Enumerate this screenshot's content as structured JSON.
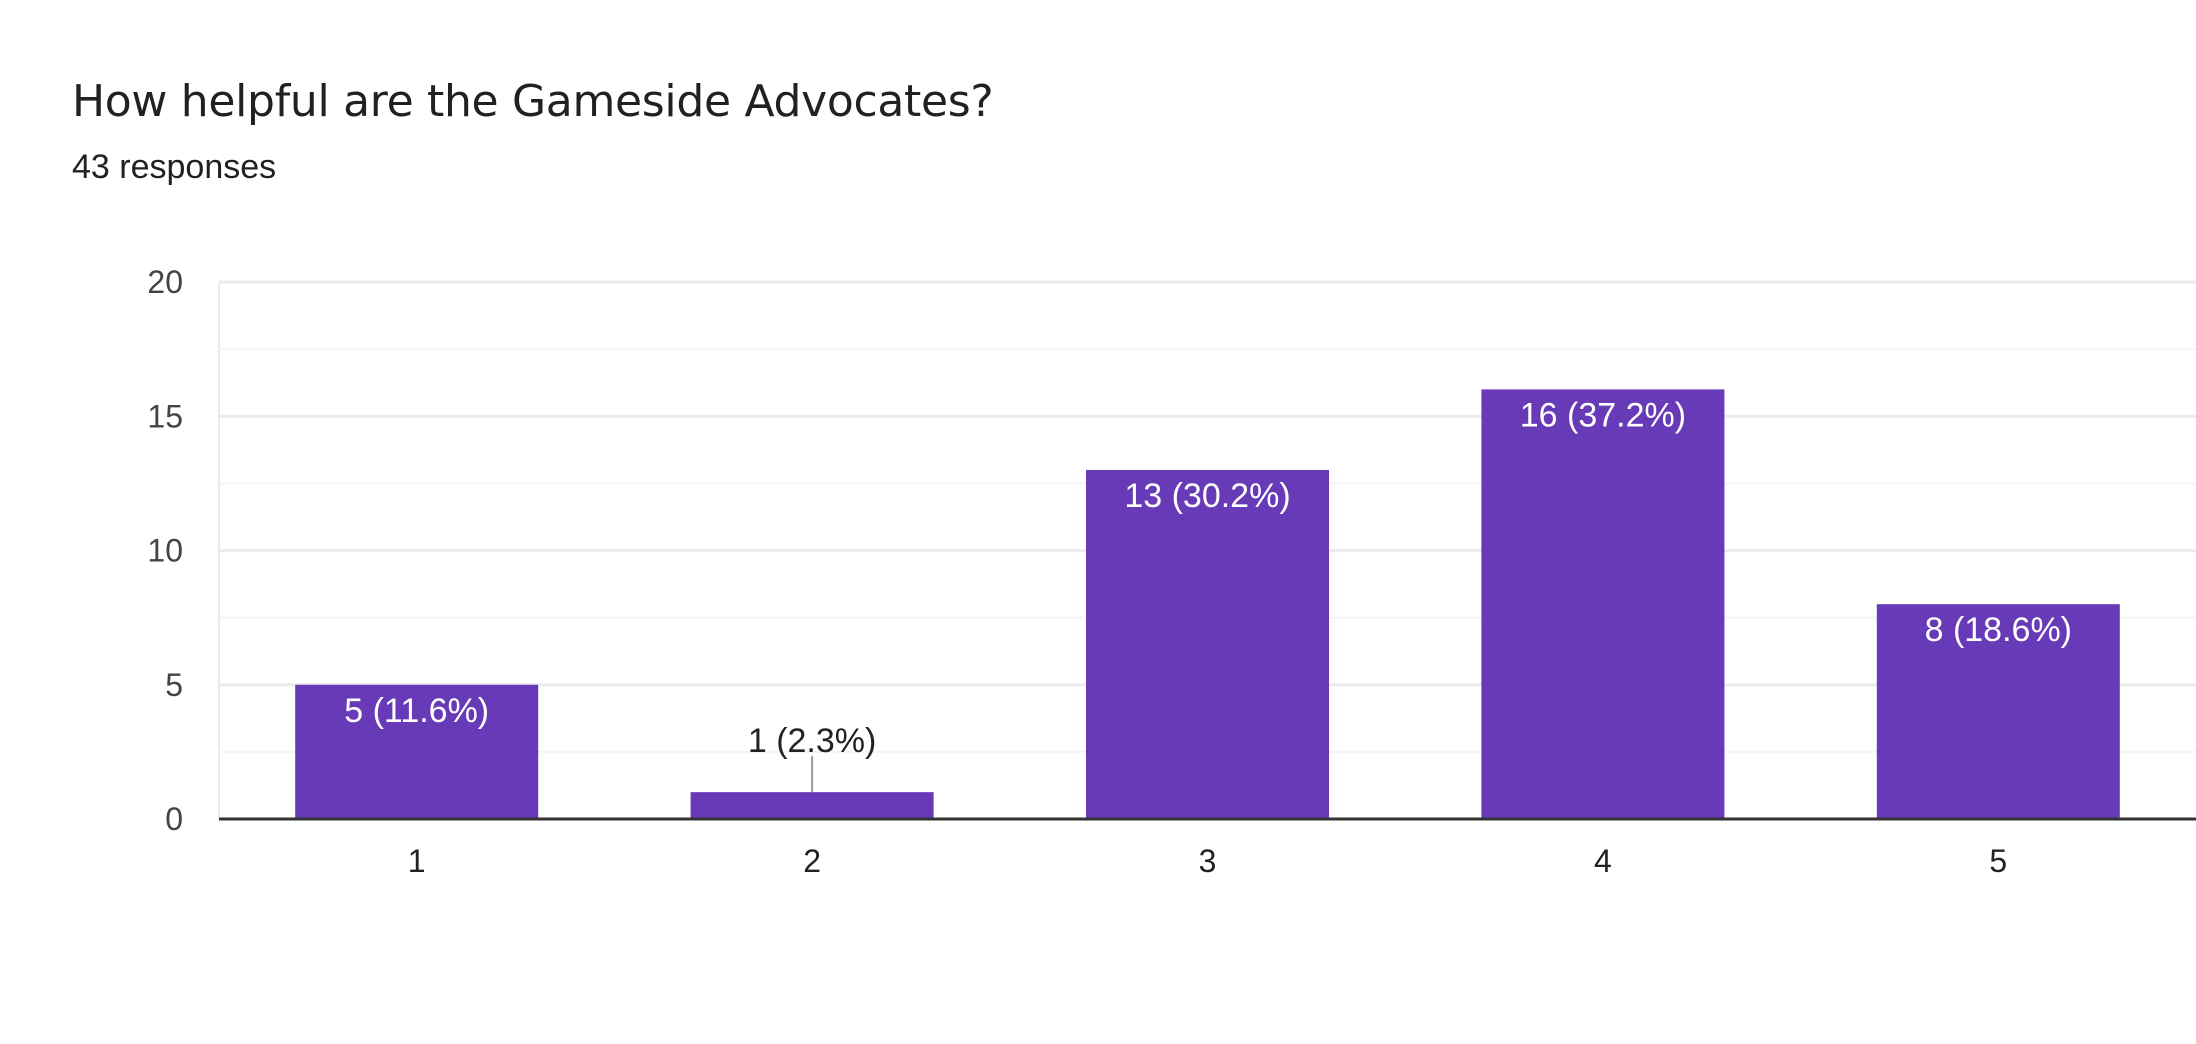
{
  "header": {
    "title": "How helpful are the Gameside Advocates?",
    "subtitle": "43 responses"
  },
  "colors": {
    "bar": "#673ab7",
    "gridline": "#ebebeb",
    "minor_gridline": "#f4f4f4",
    "baseline": "#333333",
    "label_inside": "#ffffff",
    "label_outside": "#222222"
  },
  "chart_data": {
    "type": "bar",
    "title": "How helpful are the Gameside Advocates?",
    "subtitle": "43 responses",
    "categories": [
      "1",
      "2",
      "3",
      "4",
      "5"
    ],
    "values": [
      5,
      1,
      13,
      16,
      8
    ],
    "data_labels": [
      "5 (11.6%)",
      "1 (2.3%)",
      "13 (30.2%)",
      "16 (37.2%)",
      "8 (18.6%)"
    ],
    "xlabel": "",
    "ylabel": "",
    "ylim": [
      0,
      20
    ],
    "yticks": [
      0,
      5,
      10,
      15,
      20
    ],
    "grid": true,
    "legend": "none"
  }
}
